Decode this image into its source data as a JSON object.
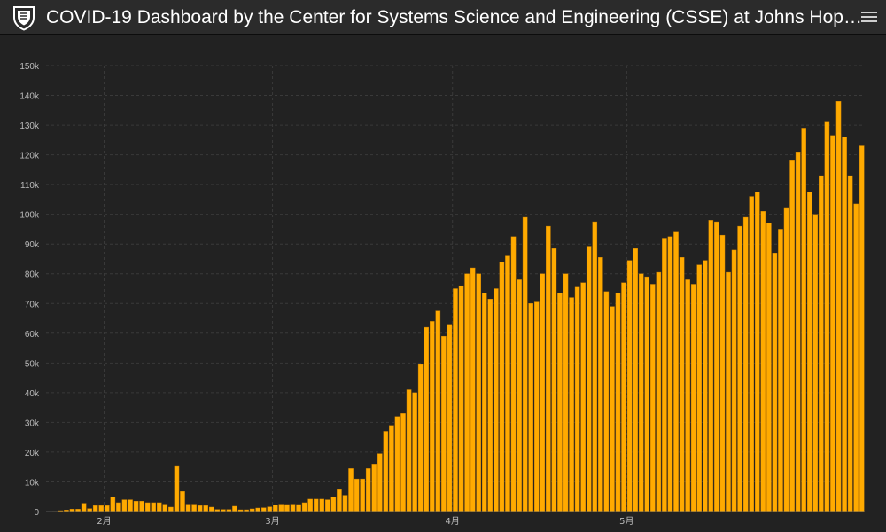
{
  "header": {
    "title": "COVID-19 Dashboard by the Center for Systems Science and Engineering (CSSE) at Johns Hop…",
    "logo_icon": "university-shield-icon",
    "menu_icon": "hamburger-menu-icon"
  },
  "colors": {
    "background": "#222222",
    "header_background": "#2b2b2b",
    "bar": "#ffaa00",
    "bar_stroke": "#cc8000",
    "grid": "#3a3a3a",
    "axis_text": "#bbbbbb",
    "title_text": "#ffffff"
  },
  "chart_data": {
    "type": "bar",
    "series_name": "",
    "xlabel": "",
    "ylabel": "",
    "ylim": [
      0,
      150000
    ],
    "y_ticks": [
      0,
      10000,
      20000,
      30000,
      40000,
      50000,
      60000,
      70000,
      80000,
      90000,
      100000,
      110000,
      120000,
      130000,
      140000,
      150000
    ],
    "y_tick_labels": [
      "0",
      "10k",
      "20k",
      "30k",
      "40k",
      "50k",
      "60k",
      "70k",
      "80k",
      "90k",
      "100k",
      "110k",
      "120k",
      "130k",
      "140k",
      "150k"
    ],
    "x_start_date": "2020-01-22",
    "x_ticks": [
      {
        "label": "2月",
        "date": "2020-02-01"
      },
      {
        "label": "3月",
        "date": "2020-03-01"
      },
      {
        "label": "4月",
        "date": "2020-04-01"
      },
      {
        "label": "5月",
        "date": "2020-05-01"
      }
    ],
    "grid": true,
    "values": [
      0,
      100,
      300,
      500,
      800,
      800,
      2800,
      1000,
      2000,
      2000,
      2000,
      5000,
      3000,
      4000,
      4000,
      3500,
      3500,
      3000,
      3000,
      3000,
      2500,
      1500,
      15200,
      6800,
      2500,
      2500,
      2000,
      2000,
      1500,
      700,
      700,
      700,
      1800,
      600,
      600,
      900,
      1200,
      1300,
      1600,
      2200,
      2500,
      2400,
      2500,
      2400,
      3000,
      4200,
      4200,
      4200,
      4000,
      5000,
      7400,
      5500,
      14500,
      11000,
      11000,
      14500,
      16000,
      19500,
      27000,
      29000,
      32000,
      33000,
      41000,
      40000,
      49500,
      62000,
      64000,
      67500,
      59000,
      63000,
      75000,
      76000,
      80000,
      82000,
      80000,
      73500,
      71500,
      75000,
      84000,
      86000,
      92500,
      78000,
      99000,
      70000,
      70500,
      80000,
      96000,
      88500,
      73500,
      80000,
      72000,
      75500,
      77000,
      89000,
      97500,
      85500,
      74000,
      69000,
      73500,
      77000,
      84500,
      88500,
      80000,
      79000,
      76500,
      80500,
      92000,
      92500,
      94000,
      85500,
      78000,
      76500,
      83000,
      84500,
      98000,
      97500,
      93000,
      80500,
      88000,
      96000,
      99000,
      106000,
      107500,
      101000,
      97000,
      87000,
      95000,
      102000,
      118000,
      121000,
      129000,
      107500,
      100000,
      113000,
      131000,
      126500,
      138000,
      126000,
      113000,
      103500,
      123000
    ]
  }
}
